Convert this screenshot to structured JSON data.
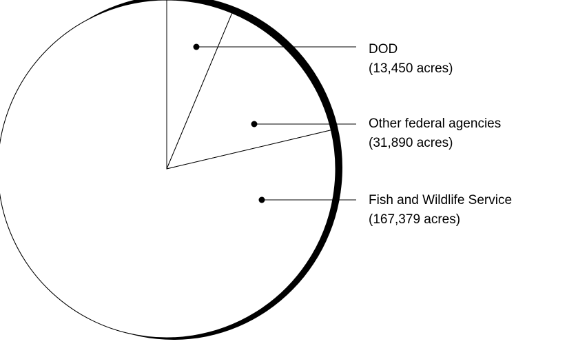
{
  "chart_data": {
    "type": "pie",
    "title": "",
    "slices": [
      {
        "label": "DOD",
        "value_text": "(13,450 acres)",
        "value": 13450
      },
      {
        "label": "Other federal agencies",
        "value_text": "(31,890 acres)",
        "value": 31890
      },
      {
        "label": "Fish and Wildlife Service",
        "value_text": "(167,379 acres)",
        "value": 167379
      }
    ],
    "legend": "right, leader lines",
    "colors": {
      "fill": "#ffffff",
      "stroke": "#000000",
      "shadow": "#000000"
    }
  }
}
